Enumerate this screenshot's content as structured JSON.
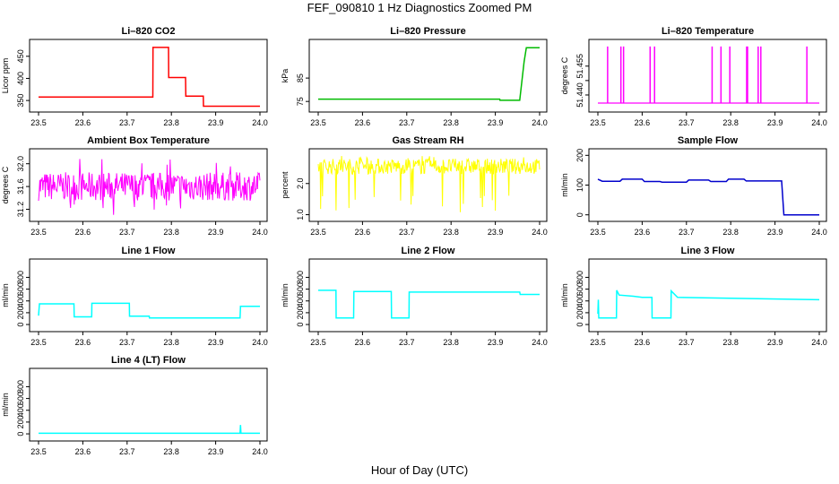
{
  "figure": {
    "title": "FEF_090810  1 Hz Diagnostics Zoomed PM",
    "xlabel": "Hour of Day (UTC)"
  },
  "colors": {
    "red": "#ff0000",
    "green": "#00bb00",
    "magenta": "#ff00ff",
    "yellow": "#ffff00",
    "blue": "#0000cc",
    "cyan": "#00ffff"
  },
  "chart_data": [
    {
      "type": "line",
      "title": "Li–820 CO2",
      "ylabel": "Licor ppm",
      "color": "#ff0000",
      "xlim": [
        23.5,
        24.0
      ],
      "xticks": [
        "23.5",
        "23.6",
        "23.7",
        "23.8",
        "23.9",
        "24.0"
      ],
      "ylim": [
        332,
        480
      ],
      "yticks": [
        {
          "v": 350,
          "label": "350"
        },
        {
          "v": 400,
          "label": "400"
        },
        {
          "v": 450,
          "label": "450"
        }
      ],
      "series": [
        {
          "x": [
            23.5,
            23.758,
            23.7585,
            23.7935,
            23.794,
            23.832,
            23.8325,
            23.872,
            23.8725,
            24.0
          ],
          "y": [
            358,
            358,
            470,
            470,
            402,
            402,
            360,
            360,
            337,
            337
          ]
        }
      ]
    },
    {
      "type": "line",
      "title": "Li–820 Pressure",
      "ylabel": "kPa",
      "color": "#00bb00",
      "xlim": [
        23.5,
        24.0
      ],
      "xticks": [
        "23.5",
        "23.6",
        "23.7",
        "23.8",
        "23.9",
        "24.0"
      ],
      "ylim": [
        72,
        100
      ],
      "yticks": [
        {
          "v": 75,
          "label": "75"
        },
        {
          "v": 85,
          "label": "85"
        }
      ],
      "series": [
        {
          "x": [
            23.5,
            23.91,
            23.9105,
            23.955,
            23.965,
            23.97,
            24.0
          ],
          "y": [
            76,
            76,
            75.5,
            75.5,
            92,
            98,
            98
          ]
        }
      ]
    },
    {
      "type": "line",
      "title": "Li–820 Temperature",
      "ylabel": "degrees C",
      "color": "#ff00ff",
      "xlim": [
        23.5,
        24.0
      ],
      "xticks": [
        "23.5",
        "23.6",
        "23.7",
        "23.8",
        "23.9",
        "24.0"
      ],
      "ylim": [
        51.433,
        51.467
      ],
      "yticks": [
        {
          "v": 51.44,
          "label": "51.440"
        },
        {
          "v": 51.4475,
          "label": ""
        },
        {
          "v": 51.455,
          "label": "51.455"
        }
      ],
      "spikes": [
        23.522,
        23.552,
        23.558,
        23.618,
        23.628,
        23.758,
        23.778,
        23.798,
        23.836,
        23.838,
        23.862,
        23.868,
        23.972
      ],
      "baseline": 51.4358,
      "spike_top": 51.4652
    },
    {
      "type": "line",
      "title": "Ambient Box Temperature",
      "ylabel": "degrees C",
      "color": "#ff00ff",
      "xlim": [
        23.5,
        24.0
      ],
      "xticks": [
        "23.5",
        "23.6",
        "23.7",
        "23.8",
        "23.9",
        "24.0"
      ],
      "ylim": [
        31.05,
        32.2
      ],
      "yticks": [
        {
          "v": 31.2,
          "label": "31.2"
        },
        {
          "v": 31.6,
          "label": "31.6"
        },
        {
          "v": 32.0,
          "label": "32.0"
        }
      ],
      "noise": {
        "center": 31.6,
        "spread": 0.25,
        "spike_low": 31.1,
        "spike_high": 32.1
      }
    },
    {
      "type": "line",
      "title": "Gas Stream RH",
      "ylabel": "percent",
      "color": "#ffff00",
      "xlim": [
        23.5,
        24.0
      ],
      "xticks": [
        "23.5",
        "23.6",
        "23.7",
        "23.8",
        "23.9",
        "24.0"
      ],
      "ylim": [
        0.9,
        3.0
      ],
      "yticks": [
        {
          "v": 1.0,
          "label": "1.0"
        },
        {
          "v": 2.0,
          "label": "2.0"
        }
      ],
      "noise": {
        "center": 2.55,
        "spread": 0.25,
        "spike_low": 1.0,
        "spike_high": 2.9
      }
    },
    {
      "type": "line",
      "title": "Sample Flow",
      "ylabel": "ml/min",
      "color": "#0000cc",
      "xlim": [
        23.5,
        24.0
      ],
      "xticks": [
        "23.5",
        "23.6",
        "23.7",
        "23.8",
        "23.9",
        "24.0"
      ],
      "ylim": [
        -10,
        210
      ],
      "yticks": [
        {
          "v": 0,
          "label": "0"
        },
        {
          "v": 100,
          "label": "100"
        },
        {
          "v": 200,
          "label": "200"
        }
      ],
      "series": [
        {
          "x": [
            23.5,
            23.51,
            23.55,
            23.555,
            23.6,
            23.605,
            23.64,
            23.645,
            23.7,
            23.705,
            23.75,
            23.755,
            23.79,
            23.795,
            23.83,
            23.835,
            23.915,
            23.92,
            24.0
          ],
          "y": [
            120,
            113,
            113,
            120,
            120,
            112,
            112,
            110,
            110,
            117,
            117,
            112,
            112,
            120,
            120,
            114,
            114,
            0,
            0
          ]
        }
      ]
    },
    {
      "type": "line",
      "title": "Line 1 Flow",
      "ylabel": "ml/min",
      "color": "#00ffff",
      "xlim": [
        23.5,
        24.0
      ],
      "xticks": [
        "23.5",
        "23.6",
        "23.7",
        "23.8",
        "23.9",
        "24.0"
      ],
      "ylim": [
        -60,
        1050
      ],
      "yticks": [
        {
          "v": 0,
          "label": "0"
        },
        {
          "v": 200,
          "label": "200"
        },
        {
          "v": 400,
          "label": "400"
        },
        {
          "v": 600,
          "label": "600"
        },
        {
          "v": 800,
          "label": "800"
        }
      ],
      "series": [
        {
          "x": [
            23.5,
            23.502,
            23.58,
            23.5805,
            23.62,
            23.6205,
            23.705,
            23.7055,
            23.75,
            23.7505,
            23.955,
            23.956,
            24.0
          ],
          "y": [
            150,
            350,
            350,
            130,
            130,
            360,
            360,
            140,
            140,
            110,
            110,
            310,
            310
          ]
        }
      ]
    },
    {
      "type": "line",
      "title": "Line 2 Flow",
      "ylabel": "ml/min",
      "color": "#00ffff",
      "xlim": [
        23.5,
        24.0
      ],
      "xticks": [
        "23.5",
        "23.6",
        "23.7",
        "23.8",
        "23.9",
        "24.0"
      ],
      "ylim": [
        -60,
        1050
      ],
      "yticks": [
        {
          "v": 0,
          "label": "0"
        },
        {
          "v": 200,
          "label": "200"
        },
        {
          "v": 400,
          "label": "400"
        },
        {
          "v": 600,
          "label": "600"
        },
        {
          "v": 800,
          "label": "800"
        }
      ],
      "series": [
        {
          "x": [
            23.5,
            23.54,
            23.5405,
            23.58,
            23.5805,
            23.665,
            23.6655,
            23.705,
            23.7055,
            23.955,
            23.956,
            24.0
          ],
          "y": [
            580,
            580,
            110,
            110,
            560,
            560,
            110,
            110,
            550,
            550,
            510,
            510
          ]
        }
      ]
    },
    {
      "type": "line",
      "title": "Line 3 Flow",
      "ylabel": "ml/min",
      "color": "#00ffff",
      "xlim": [
        23.5,
        24.0
      ],
      "xticks": [
        "23.5",
        "23.6",
        "23.7",
        "23.8",
        "23.9",
        "24.0"
      ],
      "ylim": [
        -60,
        1050
      ],
      "yticks": [
        {
          "v": 0,
          "label": "0"
        },
        {
          "v": 200,
          "label": "200"
        },
        {
          "v": 400,
          "label": "400"
        },
        {
          "v": 600,
          "label": "600"
        },
        {
          "v": 800,
          "label": "800"
        }
      ],
      "series": [
        {
          "x": [
            23.5,
            23.501,
            23.502,
            23.542,
            23.5425,
            23.548,
            23.58,
            23.6,
            23.622,
            23.6225,
            23.665,
            23.6655,
            23.68,
            24.0
          ],
          "y": [
            180,
            420,
            110,
            110,
            580,
            500,
            480,
            460,
            460,
            110,
            110,
            570,
            460,
            420
          ]
        }
      ]
    },
    {
      "type": "line",
      "title": "Line 4 (LT) Flow",
      "ylabel": "ml/min",
      "color": "#00ffff",
      "xlim": [
        23.5,
        24.0
      ],
      "xticks": [
        "23.5",
        "23.6",
        "23.7",
        "23.8",
        "23.9",
        "24.0"
      ],
      "ylim": [
        -60,
        1050
      ],
      "yticks": [
        {
          "v": 0,
          "label": "0"
        },
        {
          "v": 200,
          "label": "200"
        },
        {
          "v": 400,
          "label": "400"
        },
        {
          "v": 600,
          "label": "600"
        },
        {
          "v": 800,
          "label": "800"
        }
      ],
      "series": [
        {
          "x": [
            23.5,
            23.955,
            23.956,
            23.957,
            23.958,
            24.0
          ],
          "y": [
            10,
            10,
            150,
            10,
            10,
            10
          ]
        }
      ]
    }
  ]
}
